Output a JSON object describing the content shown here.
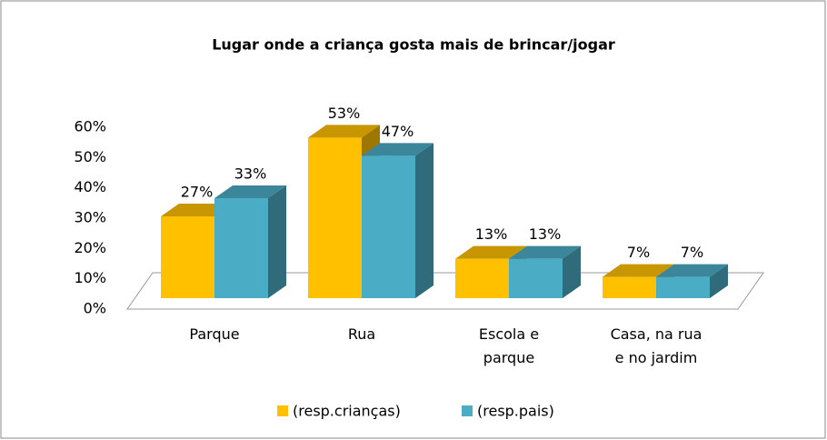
{
  "chart_data": {
    "type": "bar3d",
    "title": "Lugar onde a criança gosta mais de brincar/jogar",
    "categories": [
      "Parque",
      "Rua",
      "Escola e parque",
      "Casa, na rua e no jardim"
    ],
    "series": [
      {
        "name": "(resp.crianças)",
        "color": "#FFC000",
        "values": [
          27,
          53,
          13,
          7
        ],
        "value_labels": [
          "27%",
          "53%",
          "13%",
          "7%"
        ]
      },
      {
        "name": "(resp.pais)",
        "color": "#4BACC6",
        "values": [
          33,
          47,
          13,
          7
        ],
        "value_labels": [
          "33%",
          "47%",
          "13%",
          "7%"
        ]
      }
    ],
    "ylim": [
      0,
      60
    ],
    "yticks": [
      {
        "value": 0,
        "label": "0%"
      },
      {
        "value": 10,
        "label": "10%"
      },
      {
        "value": 20,
        "label": "20%"
      },
      {
        "value": 30,
        "label": "30%"
      },
      {
        "value": 40,
        "label": "40%"
      },
      {
        "value": 50,
        "label": "50%"
      },
      {
        "value": 60,
        "label": "60%"
      }
    ],
    "legend": "bottom"
  }
}
